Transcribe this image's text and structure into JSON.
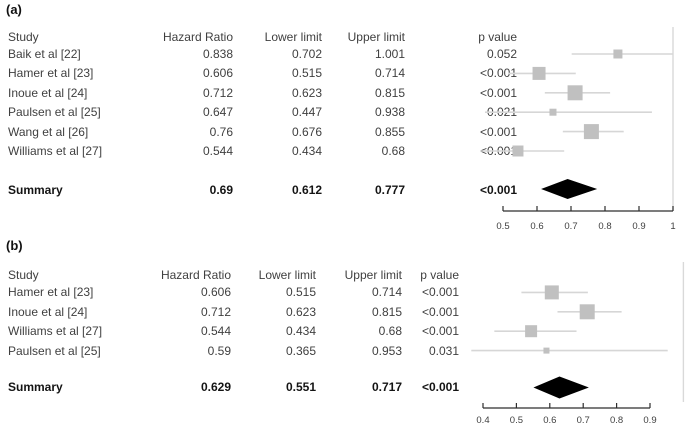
{
  "chart_data": [
    {
      "type": "forest",
      "panel_label": "(a)",
      "columns": {
        "study": "Study",
        "hr": "Hazard Ratio",
        "lower": "Lower limit",
        "upper": "Upper limit",
        "p": "p value"
      },
      "studies": [
        {
          "study": "Baik et al [22]",
          "hr": "0.838",
          "lower": "0.702",
          "upper": "1.001",
          "p": "0.052",
          "square_size": 9
        },
        {
          "study": "Hamer et al [23]",
          "hr": "0.606",
          "lower": "0.515",
          "upper": "0.714",
          "p": "<0.001",
          "square_size": 13
        },
        {
          "study": "Inoue et al [24]",
          "hr": "0.712",
          "lower": "0.623",
          "upper": "0.815",
          "p": "<0.001",
          "square_size": 15
        },
        {
          "study": "Paulsen et al [25]",
          "hr": "0.647",
          "lower": "0.447",
          "upper": "0.938",
          "p": "0.021",
          "square_size": 7
        },
        {
          "study": "Wang et al [26]",
          "hr": "0.76",
          "lower": "0.676",
          "upper": "0.855",
          "p": "<0.001",
          "square_size": 15
        },
        {
          "study": "Williams et al [27]",
          "hr": "0.544",
          "lower": "0.434",
          "upper": "0.68",
          "p": "<0.001",
          "square_size": 11
        }
      ],
      "summary": {
        "label": "Summary",
        "hr": "0.69",
        "lower": "0.612",
        "upper": "0.777",
        "p": "<0.001"
      },
      "axis": {
        "min": 0.5,
        "max": 1.0,
        "ticks": [
          "0.5",
          "0.6",
          "0.7",
          "0.8",
          "0.9",
          "1"
        ]
      },
      "reference_line": 1.0
    },
    {
      "type": "forest",
      "panel_label": "(b)",
      "columns": {
        "study": "Study",
        "hr": "Hazard Ratio",
        "lower": "Lower limit",
        "upper": "Upper limit",
        "p": "p value"
      },
      "studies": [
        {
          "study": "Hamer et al [23]",
          "hr": "0.606",
          "lower": "0.515",
          "upper": "0.714",
          "p": "<0.001",
          "square_size": 14
        },
        {
          "study": "Inoue et al [24]",
          "hr": "0.712",
          "lower": "0.623",
          "upper": "0.815",
          "p": "<0.001",
          "square_size": 15
        },
        {
          "study": "Williams et al [27]",
          "hr": "0.544",
          "lower": "0.434",
          "upper": "0.68",
          "p": "<0.001",
          "square_size": 12
        },
        {
          "study": "Paulsen et al [25]",
          "hr": "0.59",
          "lower": "0.365",
          "upper": "0.953",
          "p": "0.031",
          "square_size": 6
        }
      ],
      "summary": {
        "label": "Summary",
        "hr": "0.629",
        "lower": "0.551",
        "upper": "0.717",
        "p": "<0.001"
      },
      "axis": {
        "min": 0.4,
        "max": 0.9,
        "ticks": [
          "0.4",
          "0.5",
          "0.6",
          "0.7",
          "0.8",
          "0.9"
        ]
      },
      "reference_line": 1.0
    }
  ],
  "colors": {
    "square": "#c0c0c0",
    "ci_line": "#d6d6d6",
    "reference_line": "#d9d9d9",
    "diamond": "#000000",
    "axis": "#2d2d2d",
    "text": "#3f3f3f"
  }
}
